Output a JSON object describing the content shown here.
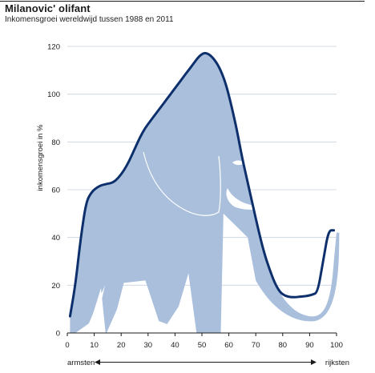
{
  "header": {
    "title": "Milanovic' olifant",
    "subtitle": "Inkomensgroei wereldwijd tussen 1988 en 2011"
  },
  "chart_data": {
    "type": "line",
    "title": "Milanovic' olifant",
    "subtitle": "Inkomensgroei wereldwijd tussen 1988 en 2011",
    "ylabel": "inkomensgroei in %",
    "xlabel": "",
    "x_left_label": "armsten",
    "x_right_label": "rijksten",
    "xlim": [
      0,
      100
    ],
    "ylim": [
      0,
      120
    ],
    "xticks": [
      0,
      10,
      20,
      30,
      40,
      50,
      60,
      70,
      80,
      90,
      100
    ],
    "yticks": [
      0,
      20,
      40,
      60,
      80,
      100,
      120
    ],
    "grid": "horizontal",
    "x": [
      1,
      3,
      5,
      7,
      9,
      11,
      13,
      15,
      17,
      19,
      21,
      23,
      25,
      27,
      29,
      31,
      33,
      35,
      37,
      39,
      41,
      43,
      45,
      47,
      49,
      51,
      53,
      55,
      57,
      59,
      61,
      63,
      65,
      67,
      69,
      71,
      73,
      75,
      77,
      79,
      81,
      83,
      85,
      87,
      89,
      91,
      93,
      95,
      97,
      99
    ],
    "series": [
      {
        "values": [
          7,
          20,
          40,
          55,
          59,
          61,
          62,
          62.5,
          63,
          65,
          68,
          72,
          77,
          82,
          86,
          89,
          92,
          95,
          98,
          101,
          104,
          107,
          110,
          113,
          116,
          117.5,
          116.5,
          114,
          110,
          104,
          95,
          85,
          73,
          63,
          53,
          43,
          34,
          27,
          21,
          17,
          15.5,
          15,
          15,
          15.3,
          15.5,
          16,
          17,
          30,
          43,
          43
        ]
      }
    ],
    "colors": {
      "line": "#0d2f6b",
      "elephant": "#a9bfdc",
      "grid": "#c9d2de",
      "axis": "#1a1a1a"
    }
  }
}
